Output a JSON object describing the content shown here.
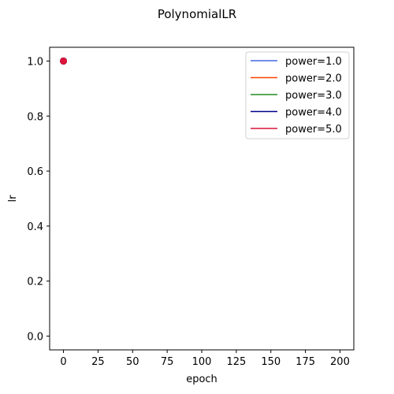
{
  "chart_data": {
    "type": "line",
    "title": "PolynomialLR",
    "xlabel": "epoch",
    "ylabel": "lr",
    "xlim": [
      -10,
      210
    ],
    "ylim": [
      -0.05,
      1.05
    ],
    "xticks": [
      0,
      25,
      50,
      75,
      100,
      125,
      150,
      175,
      200
    ],
    "yticks": [
      0.0,
      0.2,
      0.4,
      0.6,
      0.8,
      1.0
    ],
    "xtick_labels": [
      "0",
      "25",
      "50",
      "75",
      "100",
      "125",
      "150",
      "175",
      "200"
    ],
    "ytick_labels": [
      "0.0",
      "0.2",
      "0.4",
      "0.6",
      "0.8",
      "1.0"
    ],
    "grid": false,
    "legend_position": "top-right",
    "series": [
      {
        "name": "power=1.0",
        "color": "#4169e1",
        "x": [
          0
        ],
        "y": [
          1.0
        ]
      },
      {
        "name": "power=2.0",
        "color": "#ff4500",
        "x": [
          0
        ],
        "y": [
          1.0
        ]
      },
      {
        "name": "power=3.0",
        "color": "#228b22",
        "x": [
          0
        ],
        "y": [
          1.0
        ]
      },
      {
        "name": "power=4.0",
        "color": "#00008b",
        "x": [
          0
        ],
        "y": [
          1.0
        ]
      },
      {
        "name": "power=5.0",
        "color": "#dc143c",
        "x": [
          0
        ],
        "y": [
          1.0
        ]
      }
    ]
  }
}
